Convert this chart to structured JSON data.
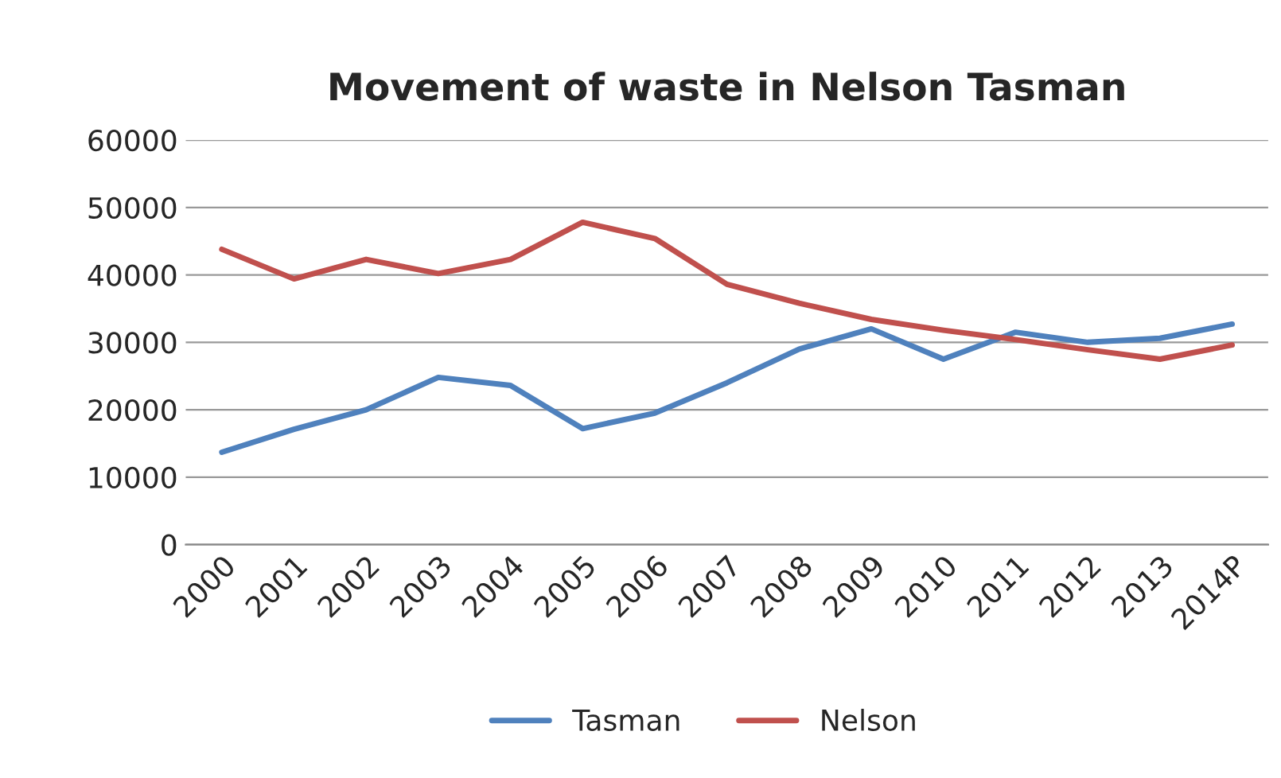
{
  "chart_data": {
    "type": "line",
    "title": "Movement of waste in Nelson Tasman",
    "categories": [
      "2000",
      "2001",
      "2002",
      "2003",
      "2004",
      "2005",
      "2006",
      "2007",
      "2008",
      "2009",
      "2010",
      "2011",
      "2012",
      "2013",
      "2014P"
    ],
    "series": [
      {
        "name": "Tasman",
        "color": "#4f81bd",
        "values": [
          13700,
          17100,
          20000,
          24800,
          23600,
          17200,
          19500,
          24000,
          29000,
          32000,
          27500,
          31500,
          30000,
          30600,
          32700
        ]
      },
      {
        "name": "Nelson",
        "color": "#c0504d",
        "values": [
          43800,
          39400,
          42300,
          40200,
          42300,
          47800,
          45400,
          38600,
          35800,
          33400,
          31800,
          30400,
          28900,
          27500,
          29600
        ]
      }
    ],
    "ylim": [
      0,
      60000
    ],
    "yticks": [
      0,
      10000,
      20000,
      30000,
      40000,
      50000,
      60000
    ],
    "grid": "y",
    "legend": "bottom",
    "marker": "none",
    "line_style": "solid"
  }
}
